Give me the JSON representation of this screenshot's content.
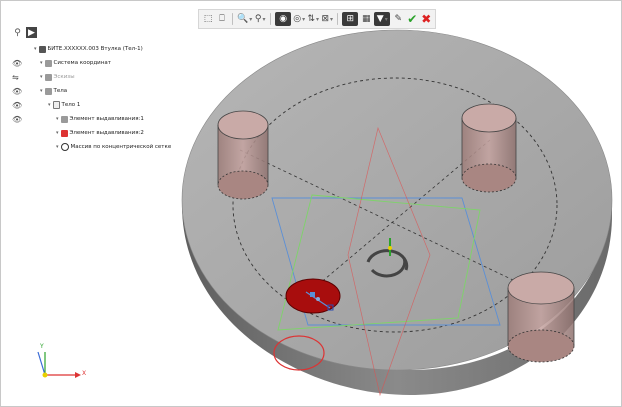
{
  "toolbar": {
    "items": [
      {
        "name": "new-sketch-icon",
        "glyph": "⬚"
      },
      {
        "name": "sketch-plane-icon",
        "glyph": "⎕"
      },
      {
        "name": "zoom-icon",
        "glyph": "🔍",
        "dropdown": true
      },
      {
        "name": "orient-icon",
        "glyph": "⚲",
        "dropdown": true
      },
      {
        "name": "display-mode-icon",
        "glyph": "◉",
        "dark": true
      },
      {
        "name": "view-mode-icon",
        "glyph": "◎",
        "dropdown": true
      },
      {
        "name": "section-icon",
        "glyph": "⇅",
        "dropdown": true
      },
      {
        "name": "measure-icon",
        "glyph": "⊠",
        "dropdown": true
      },
      {
        "name": "constraints-icon",
        "glyph": "⊞",
        "dark": true
      },
      {
        "name": "grid-icon",
        "glyph": "▦"
      },
      {
        "name": "filter-icon",
        "glyph": "▼",
        "dark": true,
        "dropdown": true
      },
      {
        "name": "pencil-icon",
        "glyph": "✎"
      }
    ],
    "ok_glyph": "✔",
    "cancel_glyph": "✖"
  },
  "tree_header": {
    "filter_glyph": "⚲",
    "mode_glyph": "▶"
  },
  "tree": {
    "rows": [
      {
        "name": "tree-root",
        "indent": 22,
        "eye": "",
        "label": "БИТЕ.XXXXXX.003 Втулка (Тел-1)",
        "icon": "dark",
        "dim": false
      },
      {
        "name": "tree-coordinate-system",
        "indent": 28,
        "eye": "👁",
        "label": "Система координат",
        "icon": "grey",
        "dim": false
      },
      {
        "name": "tree-sketches",
        "indent": 28,
        "eye": "⇋",
        "label": "Эскизы",
        "icon": "grey",
        "dim": true
      },
      {
        "name": "tree-bodies",
        "indent": 28,
        "eye": "👁",
        "label": "Тела",
        "icon": "grey",
        "dim": false
      },
      {
        "name": "tree-body-1",
        "indent": 36,
        "eye": "👁",
        "label": "Тело 1",
        "icon": "part",
        "dim": false
      },
      {
        "name": "tree-extrude-1",
        "indent": 44,
        "eye": "👁",
        "label": "Элемент выдавливания:1",
        "icon": "grey",
        "dim": false
      },
      {
        "name": "tree-extrude-2",
        "indent": 44,
        "eye": "",
        "label": "Элемент выдавливания:2",
        "icon": "red",
        "dim": false
      },
      {
        "name": "tree-concentric-array",
        "indent": 44,
        "eye": "",
        "label": "Массив по концентрической сетке",
        "icon": "circ",
        "dim": false
      }
    ]
  },
  "axes": {
    "x_label": "X",
    "y_label": "Y"
  },
  "colors": {
    "disc_top": "#a9a9a9",
    "disc_side": "#7d7d7d",
    "hole_fill": "#b08a86",
    "selected_hole": "#a80d0d",
    "plane_blue": "#5b8fd6",
    "plane_green": "#7ed36a",
    "sketch_red": "#e05050"
  }
}
